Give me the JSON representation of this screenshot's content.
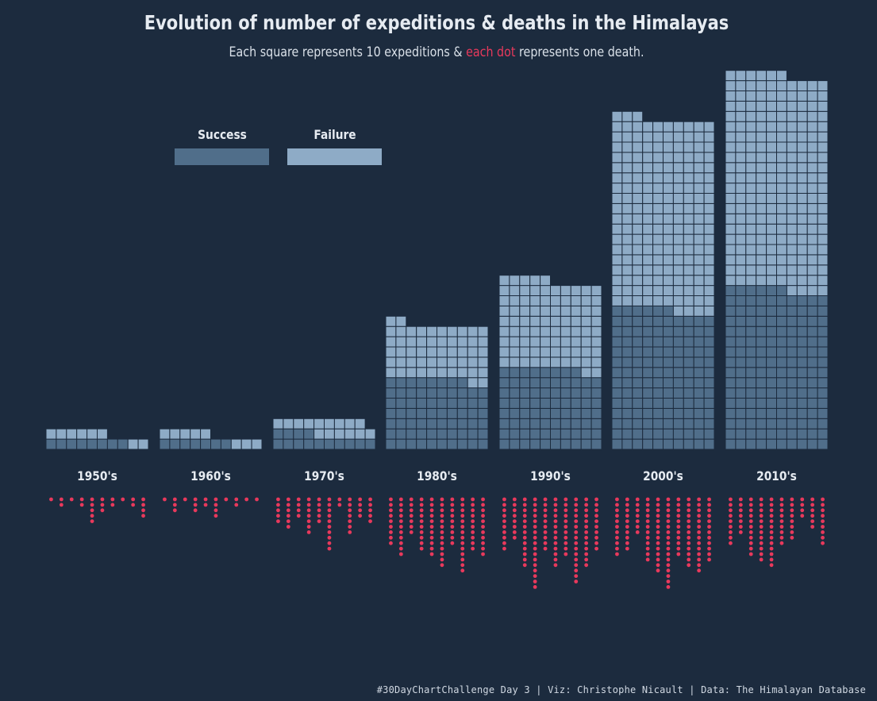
{
  "title": "Evolution of number of expeditions & deaths in the Himalayas",
  "subtitle": {
    "before": "Each square represents 10 expeditions & ",
    "highlight": "each dot",
    "after": " represents one death."
  },
  "legend": {
    "success_label": "Success",
    "failure_label": "Failure"
  },
  "colors": {
    "background": "#1c2b3e",
    "success": "#506e8a",
    "failure": "#8eabc6",
    "grid": "#1c2b3e",
    "death": "#e8395c",
    "text": "#e6ebf1"
  },
  "caption": "#30DayChartChallenge Day 3 | Viz: Christophe Nicault | Data: The Himalayan Database",
  "chart_data": {
    "type": "waffle",
    "unit_square": 10,
    "unit_dot": 1,
    "columns_per_decade": 10,
    "categories": [
      "1950's",
      "1960's",
      "1970's",
      "1980's",
      "1990's",
      "2000's",
      "2010's"
    ],
    "series": [
      {
        "name": "Success",
        "values": [
          8,
          7,
          14,
          68,
          78,
          136,
          156
        ]
      },
      {
        "name": "Failure",
        "values": [
          8,
          8,
          15,
          54,
          87,
          187,
          210
        ]
      }
    ],
    "deaths_per_column": [
      [
        1,
        2,
        1,
        2,
        5,
        3,
        2,
        1,
        2,
        4
      ],
      [
        1,
        3,
        1,
        3,
        2,
        4,
        1,
        2,
        1,
        1
      ],
      [
        5,
        6,
        4,
        7,
        5,
        10,
        2,
        7,
        4,
        5
      ],
      [
        9,
        11,
        7,
        10,
        11,
        13,
        9,
        14,
        10,
        11
      ],
      [
        10,
        8,
        13,
        17,
        10,
        13,
        11,
        16,
        13,
        10
      ],
      [
        11,
        10,
        7,
        12,
        14,
        17,
        11,
        13,
        14,
        12
      ],
      [
        9,
        7,
        11,
        12,
        13,
        9,
        8,
        4,
        6,
        9
      ]
    ]
  }
}
